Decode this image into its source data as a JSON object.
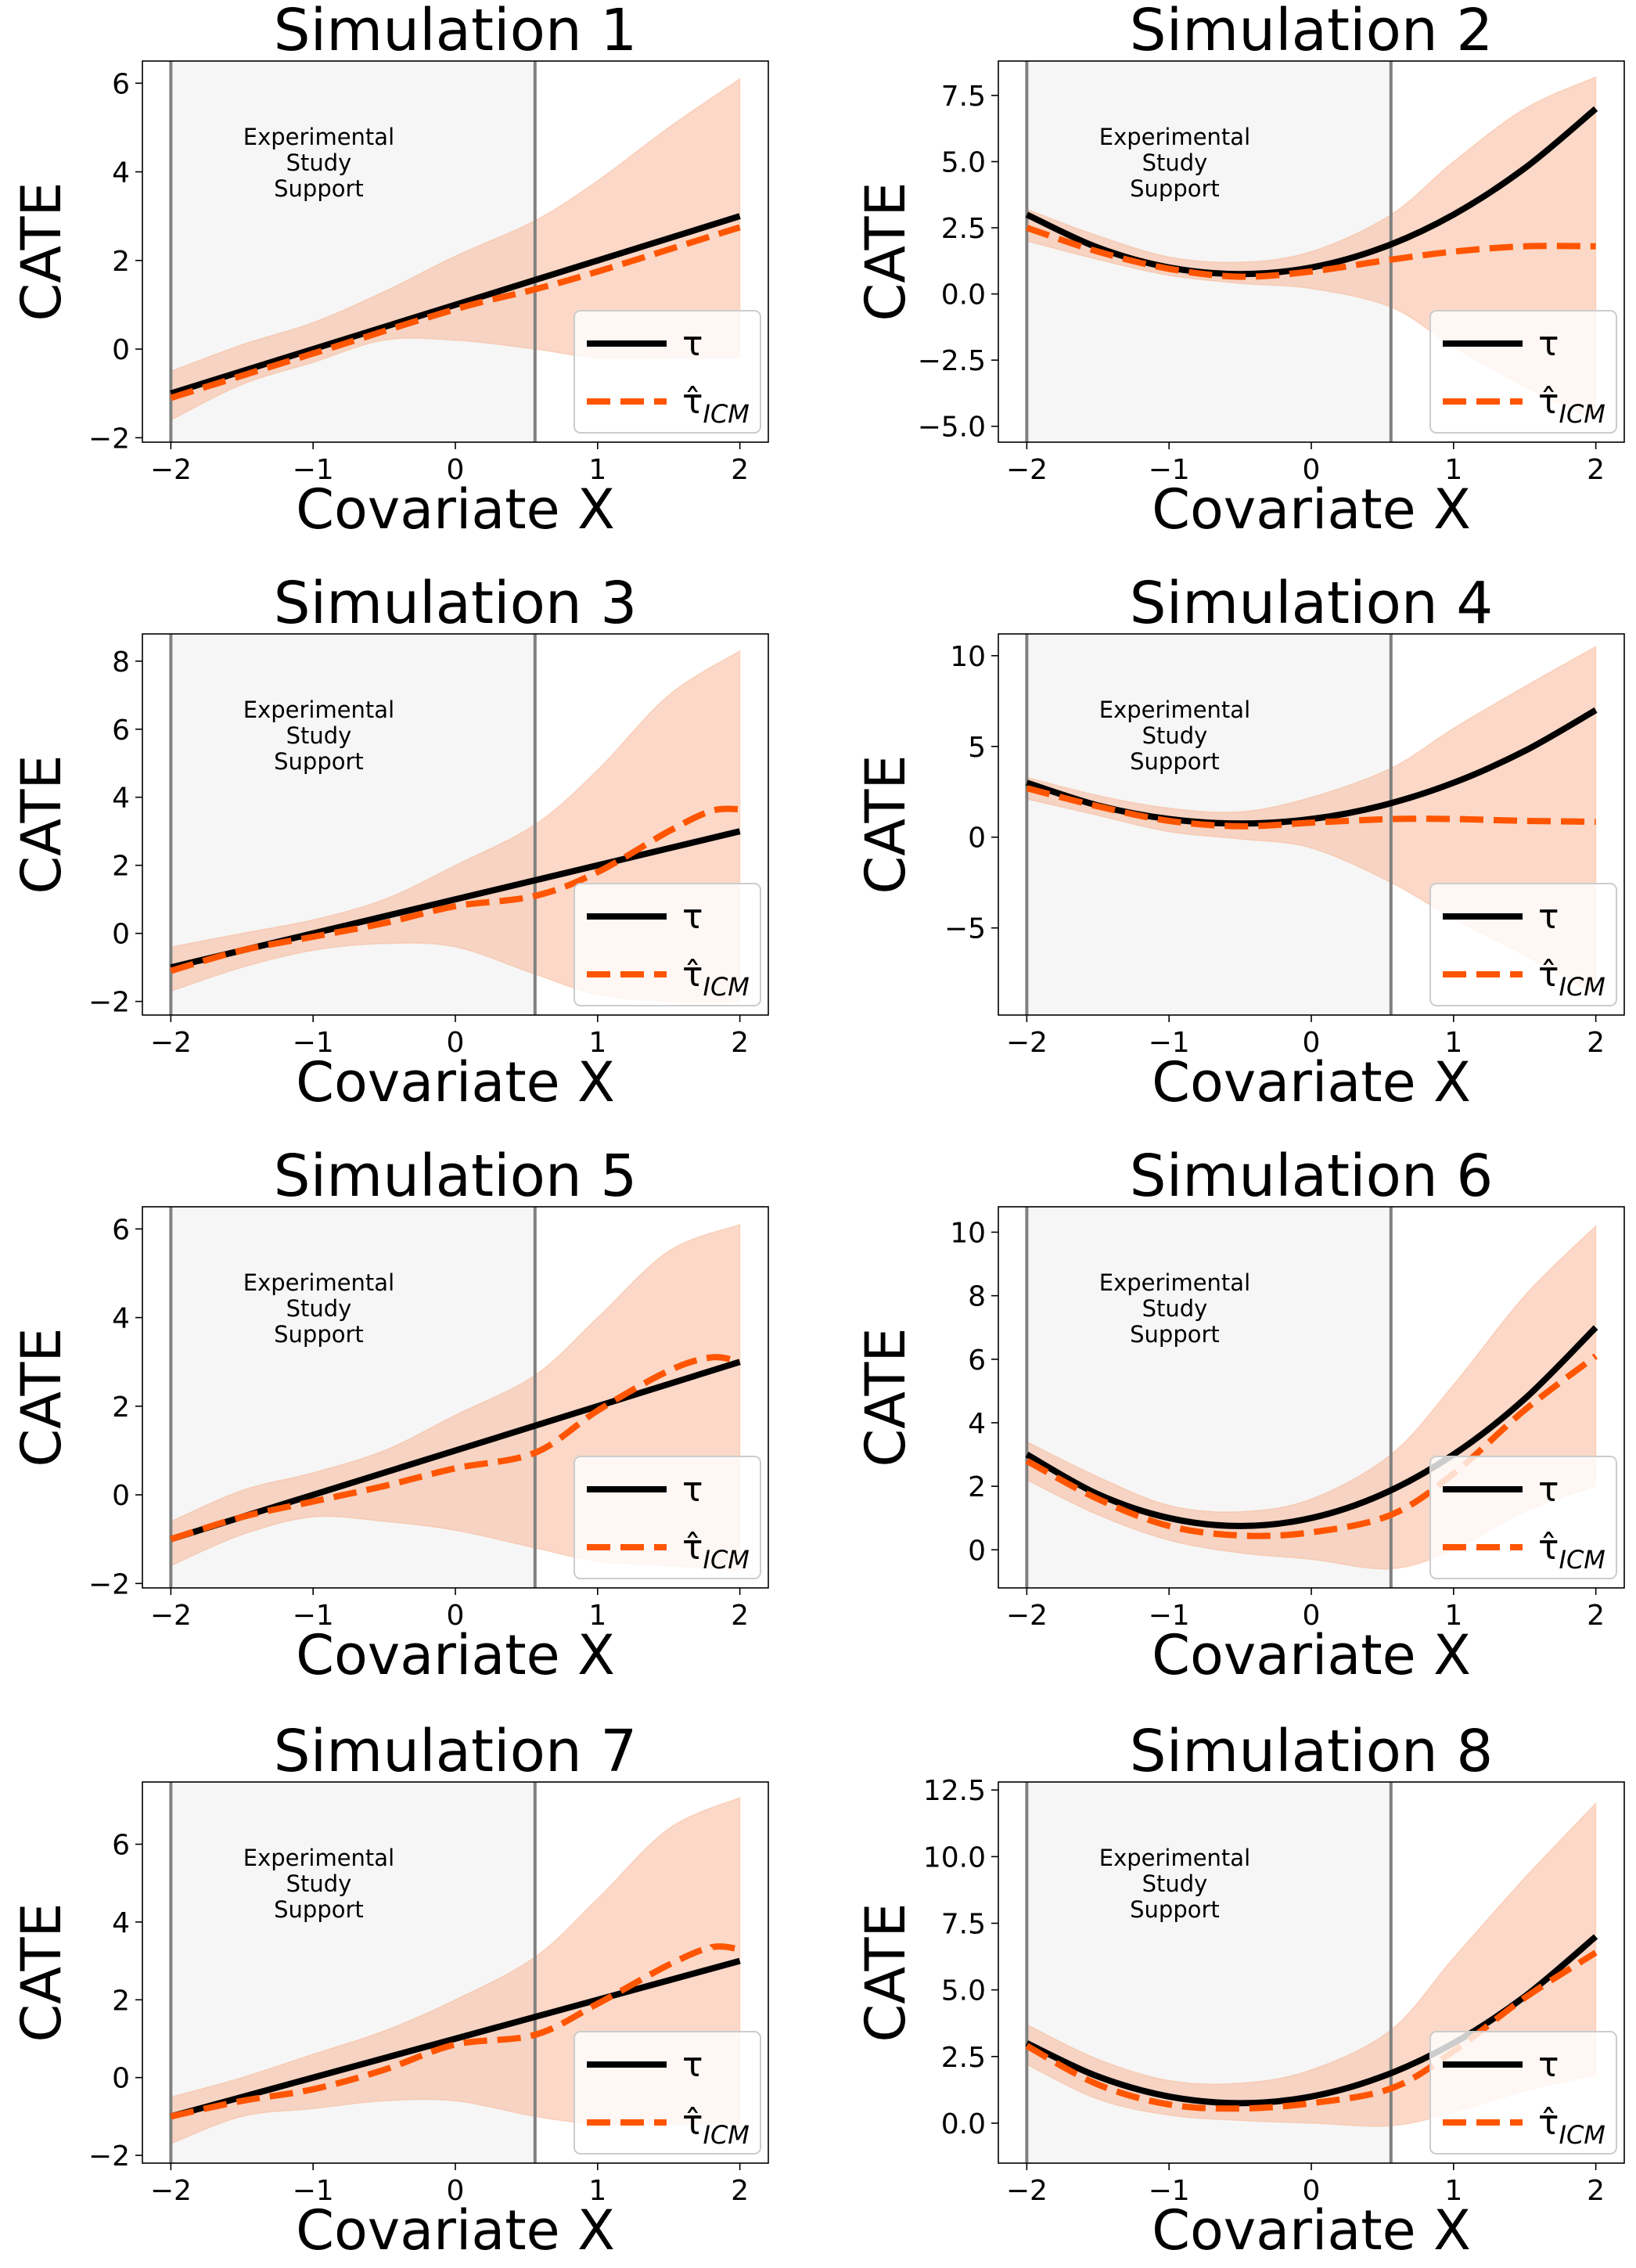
{
  "figure": {
    "region_label_lines": [
      "Experimental",
      "Study",
      "Support"
    ],
    "legend": [
      {
        "key": "tau",
        "label": "τ",
        "color": "#000000",
        "style": "solid"
      },
      {
        "key": "tau_hat",
        "label": "τ̂",
        "subscript": "ICM",
        "color": "#ff5500",
        "style": "dashed"
      }
    ],
    "band_color": "#f7a982",
    "region_color": "#f6f6f6",
    "vline_color": "#808080"
  },
  "chart_data": [
    {
      "type": "line",
      "title": "Simulation 1",
      "xlabel": "Covariate X",
      "ylabel": "CATE",
      "xlim": [
        -2.2,
        2.2
      ],
      "ylim": [
        -2.1,
        6.5
      ],
      "xticks": [
        -2,
        -1,
        0,
        1,
        2
      ],
      "yticks": [
        -2,
        0,
        2,
        4,
        6
      ],
      "support_region": [
        -2,
        0.56
      ],
      "series": [
        {
          "key": "tau",
          "x": [
            -2,
            2
          ],
          "y": [
            -1,
            3
          ]
        },
        {
          "key": "tau_hat",
          "x": [
            -2,
            -1,
            0,
            0.56,
            1,
            2
          ],
          "y": [
            -1.1,
            -0.1,
            0.9,
            1.35,
            1.75,
            2.75
          ]
        }
      ],
      "band": {
        "x": [
          -2,
          -1.5,
          -1,
          -0.5,
          0,
          0.56,
          1,
          1.5,
          2
        ],
        "lower": [
          -1.6,
          -0.8,
          -0.3,
          0.2,
          0.2,
          0.0,
          -0.2,
          -0.2,
          -0.2
        ],
        "upper": [
          -0.5,
          0.1,
          0.6,
          1.3,
          2.1,
          2.9,
          3.8,
          5.0,
          6.1
        ]
      }
    },
    {
      "type": "line",
      "title": "Simulation 2",
      "xlabel": "Covariate X",
      "ylabel": "CATE",
      "xlim": [
        -2.2,
        2.2
      ],
      "ylim": [
        -5.6,
        8.8
      ],
      "xticks": [
        -2,
        -1,
        0,
        1,
        2
      ],
      "yticks": [
        -5.0,
        -2.5,
        0.0,
        2.5,
        5.0,
        7.5
      ],
      "ytick_labels": [
        "−5.0",
        "−2.5",
        "0.0",
        "2.5",
        "5.0",
        "7.5"
      ],
      "support_region": [
        -2,
        0.56
      ],
      "series": [
        {
          "key": "tau",
          "x": [
            -2,
            -1.5,
            -1,
            -0.5,
            0,
            0.5,
            1,
            1.5,
            2
          ],
          "y": [
            3.0,
            1.75,
            1.0,
            0.75,
            1.0,
            1.75,
            3.0,
            4.75,
            7.0
          ]
        },
        {
          "key": "tau_hat",
          "x": [
            -2,
            -1.5,
            -1,
            -0.5,
            0,
            0.5,
            1,
            1.5,
            2
          ],
          "y": [
            2.5,
            1.6,
            0.95,
            0.65,
            0.85,
            1.25,
            1.6,
            1.8,
            1.8
          ]
        }
      ],
      "band": {
        "x": [
          -2,
          -1.5,
          -1,
          -0.5,
          0,
          0.56,
          1,
          1.5,
          2
        ],
        "lower": [
          2.0,
          1.3,
          0.7,
          0.4,
          0.2,
          -0.5,
          -2.0,
          -3.5,
          -4.8
        ],
        "upper": [
          3.2,
          2.2,
          1.4,
          1.2,
          1.6,
          3.0,
          5.0,
          7.0,
          8.2
        ]
      }
    },
    {
      "type": "line",
      "title": "Simulation 3",
      "xlabel": "Covariate X",
      "ylabel": "CATE",
      "xlim": [
        -2.2,
        2.2
      ],
      "ylim": [
        -2.4,
        8.8
      ],
      "xticks": [
        -2,
        -1,
        0,
        1,
        2
      ],
      "yticks": [
        -2,
        0,
        2,
        4,
        6,
        8
      ],
      "support_region": [
        -2,
        0.56
      ],
      "series": [
        {
          "key": "tau",
          "x": [
            -2,
            2
          ],
          "y": [
            -1,
            3
          ]
        },
        {
          "key": "tau_hat",
          "x": [
            -2,
            -1.5,
            -1,
            -0.5,
            0,
            0.56,
            1,
            1.5,
            1.8,
            2
          ],
          "y": [
            -1.1,
            -0.5,
            -0.1,
            0.3,
            0.8,
            1.1,
            1.8,
            3.0,
            3.6,
            3.65
          ]
        }
      ],
      "band": {
        "x": [
          -2,
          -1.5,
          -1,
          -0.5,
          0,
          0.56,
          1,
          1.5,
          2
        ],
        "lower": [
          -1.7,
          -1.0,
          -0.5,
          -0.3,
          -0.4,
          -1.2,
          -1.8,
          -2.0,
          -2.0
        ],
        "upper": [
          -0.4,
          0.0,
          0.4,
          1.0,
          2.0,
          3.2,
          4.8,
          7.0,
          8.3
        ]
      }
    },
    {
      "type": "line",
      "title": "Simulation 4",
      "xlabel": "Covariate X",
      "ylabel": "CATE",
      "xlim": [
        -2.2,
        2.2
      ],
      "ylim": [
        -9.8,
        11.2
      ],
      "xticks": [
        -2,
        -1,
        0,
        1,
        2
      ],
      "yticks": [
        -5,
        0,
        5,
        10
      ],
      "ytick_labels": [
        "−5",
        "0",
        "5",
        "10"
      ],
      "support_region": [
        -2,
        0.56
      ],
      "series": [
        {
          "key": "tau",
          "x": [
            -2,
            -1.5,
            -1,
            -0.5,
            0,
            0.5,
            1,
            1.5,
            2
          ],
          "y": [
            3.0,
            1.75,
            1.0,
            0.75,
            1.0,
            1.75,
            3.0,
            4.75,
            7.0
          ]
        },
        {
          "key": "tau_hat",
          "x": [
            -2,
            -1.5,
            -1,
            -0.5,
            0,
            0.56,
            1,
            1.5,
            2
          ],
          "y": [
            2.7,
            1.7,
            0.9,
            0.6,
            0.8,
            1.0,
            1.0,
            0.9,
            0.85
          ]
        }
      ],
      "band": {
        "x": [
          -2,
          -1.5,
          -1,
          -0.5,
          0,
          0.56,
          1,
          1.5,
          2
        ],
        "lower": [
          2.1,
          1.2,
          0.3,
          -0.1,
          -0.6,
          -2.5,
          -4.5,
          -6.5,
          -8.7
        ],
        "upper": [
          3.3,
          2.3,
          1.6,
          1.4,
          2.2,
          3.8,
          6.0,
          8.3,
          10.5
        ]
      }
    },
    {
      "type": "line",
      "title": "Simulation 5",
      "xlabel": "Covariate X",
      "ylabel": "CATE",
      "xlim": [
        -2.2,
        2.2
      ],
      "ylim": [
        -2.1,
        6.5
      ],
      "xticks": [
        -2,
        -1,
        0,
        1,
        2
      ],
      "yticks": [
        -2,
        0,
        2,
        4,
        6
      ],
      "support_region": [
        -2,
        0.56
      ],
      "series": [
        {
          "key": "tau",
          "x": [
            -2,
            2
          ],
          "y": [
            -1,
            3
          ]
        },
        {
          "key": "tau_hat",
          "x": [
            -2,
            -1.5,
            -1,
            -0.5,
            0,
            0.56,
            1,
            1.5,
            1.8,
            2
          ],
          "y": [
            -1.0,
            -0.5,
            -0.15,
            0.2,
            0.6,
            0.95,
            1.9,
            2.8,
            3.1,
            3.0
          ]
        }
      ],
      "band": {
        "x": [
          -2,
          -1.5,
          -1,
          -0.5,
          0,
          0.56,
          1,
          1.5,
          2
        ],
        "lower": [
          -1.6,
          -0.9,
          -0.5,
          -0.6,
          -0.8,
          -1.2,
          -1.5,
          -1.6,
          -1.7
        ],
        "upper": [
          -0.6,
          0.1,
          0.5,
          1.0,
          1.8,
          2.7,
          4.0,
          5.5,
          6.1
        ]
      }
    },
    {
      "type": "line",
      "title": "Simulation 6",
      "xlabel": "Covariate X",
      "ylabel": "CATE",
      "xlim": [
        -2.2,
        2.2
      ],
      "ylim": [
        -1.2,
        10.8
      ],
      "xticks": [
        -2,
        -1,
        0,
        1,
        2
      ],
      "yticks": [
        0,
        2,
        4,
        6,
        8,
        10
      ],
      "support_region": [
        -2,
        0.56
      ],
      "series": [
        {
          "key": "tau",
          "x": [
            -2,
            -1.5,
            -1,
            -0.5,
            0,
            0.5,
            1,
            1.5,
            2
          ],
          "y": [
            3.0,
            1.75,
            1.0,
            0.75,
            1.0,
            1.75,
            3.0,
            4.75,
            7.0
          ]
        },
        {
          "key": "tau_hat",
          "x": [
            -2,
            -1.5,
            -1,
            -0.5,
            0,
            0.56,
            1,
            1.5,
            2
          ],
          "y": [
            2.8,
            1.6,
            0.75,
            0.45,
            0.55,
            1.1,
            2.4,
            4.4,
            6.1
          ]
        }
      ],
      "band": {
        "x": [
          -2,
          -1.5,
          -1,
          -0.5,
          0,
          0.56,
          1,
          1.5,
          2
        ],
        "lower": [
          2.2,
          1.1,
          0.3,
          -0.1,
          -0.3,
          -0.6,
          0.0,
          1.2,
          2.0
        ],
        "upper": [
          3.4,
          2.3,
          1.4,
          1.2,
          1.6,
          3.0,
          5.2,
          8.0,
          10.2
        ]
      }
    },
    {
      "type": "line",
      "title": "Simulation 7",
      "xlabel": "Covariate X",
      "ylabel": "CATE",
      "xlim": [
        -2.2,
        2.2
      ],
      "ylim": [
        -2.2,
        7.6
      ],
      "xticks": [
        -2,
        -1,
        0,
        1,
        2
      ],
      "yticks": [
        -2,
        0,
        2,
        4,
        6
      ],
      "support_region": [
        -2,
        0.56
      ],
      "series": [
        {
          "key": "tau",
          "x": [
            -2,
            2
          ],
          "y": [
            -1,
            3
          ]
        },
        {
          "key": "tau_hat",
          "x": [
            -2,
            -1.5,
            -1,
            -0.5,
            0,
            0.56,
            1,
            1.5,
            1.8,
            2
          ],
          "y": [
            -1.0,
            -0.6,
            -0.3,
            0.2,
            0.85,
            1.1,
            1.9,
            2.9,
            3.35,
            3.3
          ]
        }
      ],
      "band": {
        "x": [
          -2,
          -1.5,
          -1,
          -0.5,
          0,
          0.56,
          1,
          1.5,
          2
        ],
        "lower": [
          -1.7,
          -1.0,
          -0.8,
          -0.6,
          -0.6,
          -1.0,
          -1.2,
          -1.2,
          -1.2
        ],
        "upper": [
          -0.5,
          0.0,
          0.6,
          1.2,
          2.0,
          3.1,
          4.6,
          6.4,
          7.2
        ]
      }
    },
    {
      "type": "line",
      "title": "Simulation 8",
      "xlabel": "Covariate X",
      "ylabel": "CATE",
      "xlim": [
        -2.2,
        2.2
      ],
      "ylim": [
        -1.5,
        12.8
      ],
      "xticks": [
        -2,
        -1,
        0,
        1,
        2
      ],
      "yticks": [
        0.0,
        2.5,
        5.0,
        7.5,
        10.0,
        12.5
      ],
      "ytick_labels": [
        "0.0",
        "2.5",
        "5.0",
        "7.5",
        "10.0",
        "12.5"
      ],
      "support_region": [
        -2,
        0.56
      ],
      "series": [
        {
          "key": "tau",
          "x": [
            -2,
            -1.5,
            -1,
            -0.5,
            0,
            0.5,
            1,
            1.5,
            2
          ],
          "y": [
            3.0,
            1.75,
            1.0,
            0.75,
            1.0,
            1.75,
            3.0,
            4.75,
            7.0
          ]
        },
        {
          "key": "tau_hat",
          "x": [
            -2,
            -1.5,
            -1,
            -0.5,
            0,
            0.56,
            1,
            1.5,
            2
          ],
          "y": [
            2.9,
            1.45,
            0.7,
            0.55,
            0.75,
            1.3,
            2.7,
            4.7,
            6.4
          ]
        }
      ],
      "band": {
        "x": [
          -2,
          -1.5,
          -1,
          -0.5,
          0,
          0.56,
          1,
          1.5,
          2
        ],
        "lower": [
          2.2,
          0.9,
          0.3,
          0.1,
          0.0,
          -0.1,
          0.4,
          1.2,
          1.8
        ],
        "upper": [
          3.7,
          2.4,
          1.6,
          1.5,
          2.0,
          3.5,
          6.2,
          9.2,
          12.0
        ]
      }
    }
  ]
}
